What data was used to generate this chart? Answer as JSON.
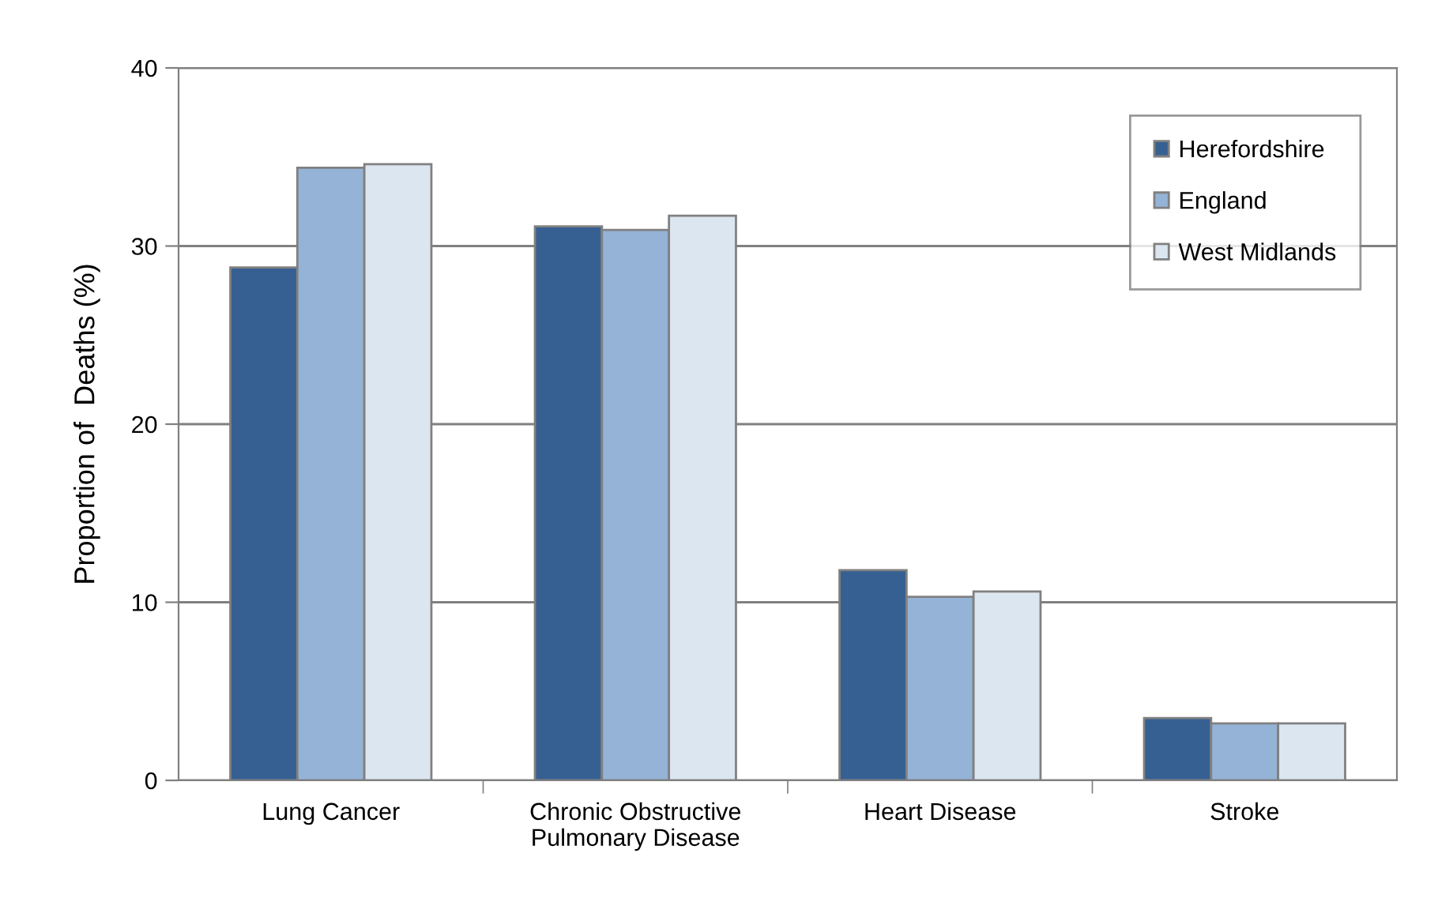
{
  "chart_data": {
    "type": "bar",
    "ylabel": "Proportion of  Deaths (%)",
    "categories": [
      "Lung Cancer",
      "Chronic Obstructive\nPulmonary Disease",
      "Heart Disease",
      "Stroke"
    ],
    "series": [
      {
        "name": "Herefordshire",
        "color": "#366092",
        "values": [
          28.8,
          31.1,
          11.8,
          3.5
        ]
      },
      {
        "name": "England",
        "color": "#95b3d7",
        "values": [
          34.4,
          30.9,
          10.3,
          3.2
        ]
      },
      {
        "name": "West Midlands",
        "color": "#dce6f1",
        "values": [
          34.6,
          31.7,
          10.6,
          3.2
        ]
      }
    ],
    "ylim": [
      0,
      40
    ],
    "yticks": [
      0,
      10,
      20,
      30,
      40
    ],
    "grid": "y",
    "legend": "top right"
  }
}
